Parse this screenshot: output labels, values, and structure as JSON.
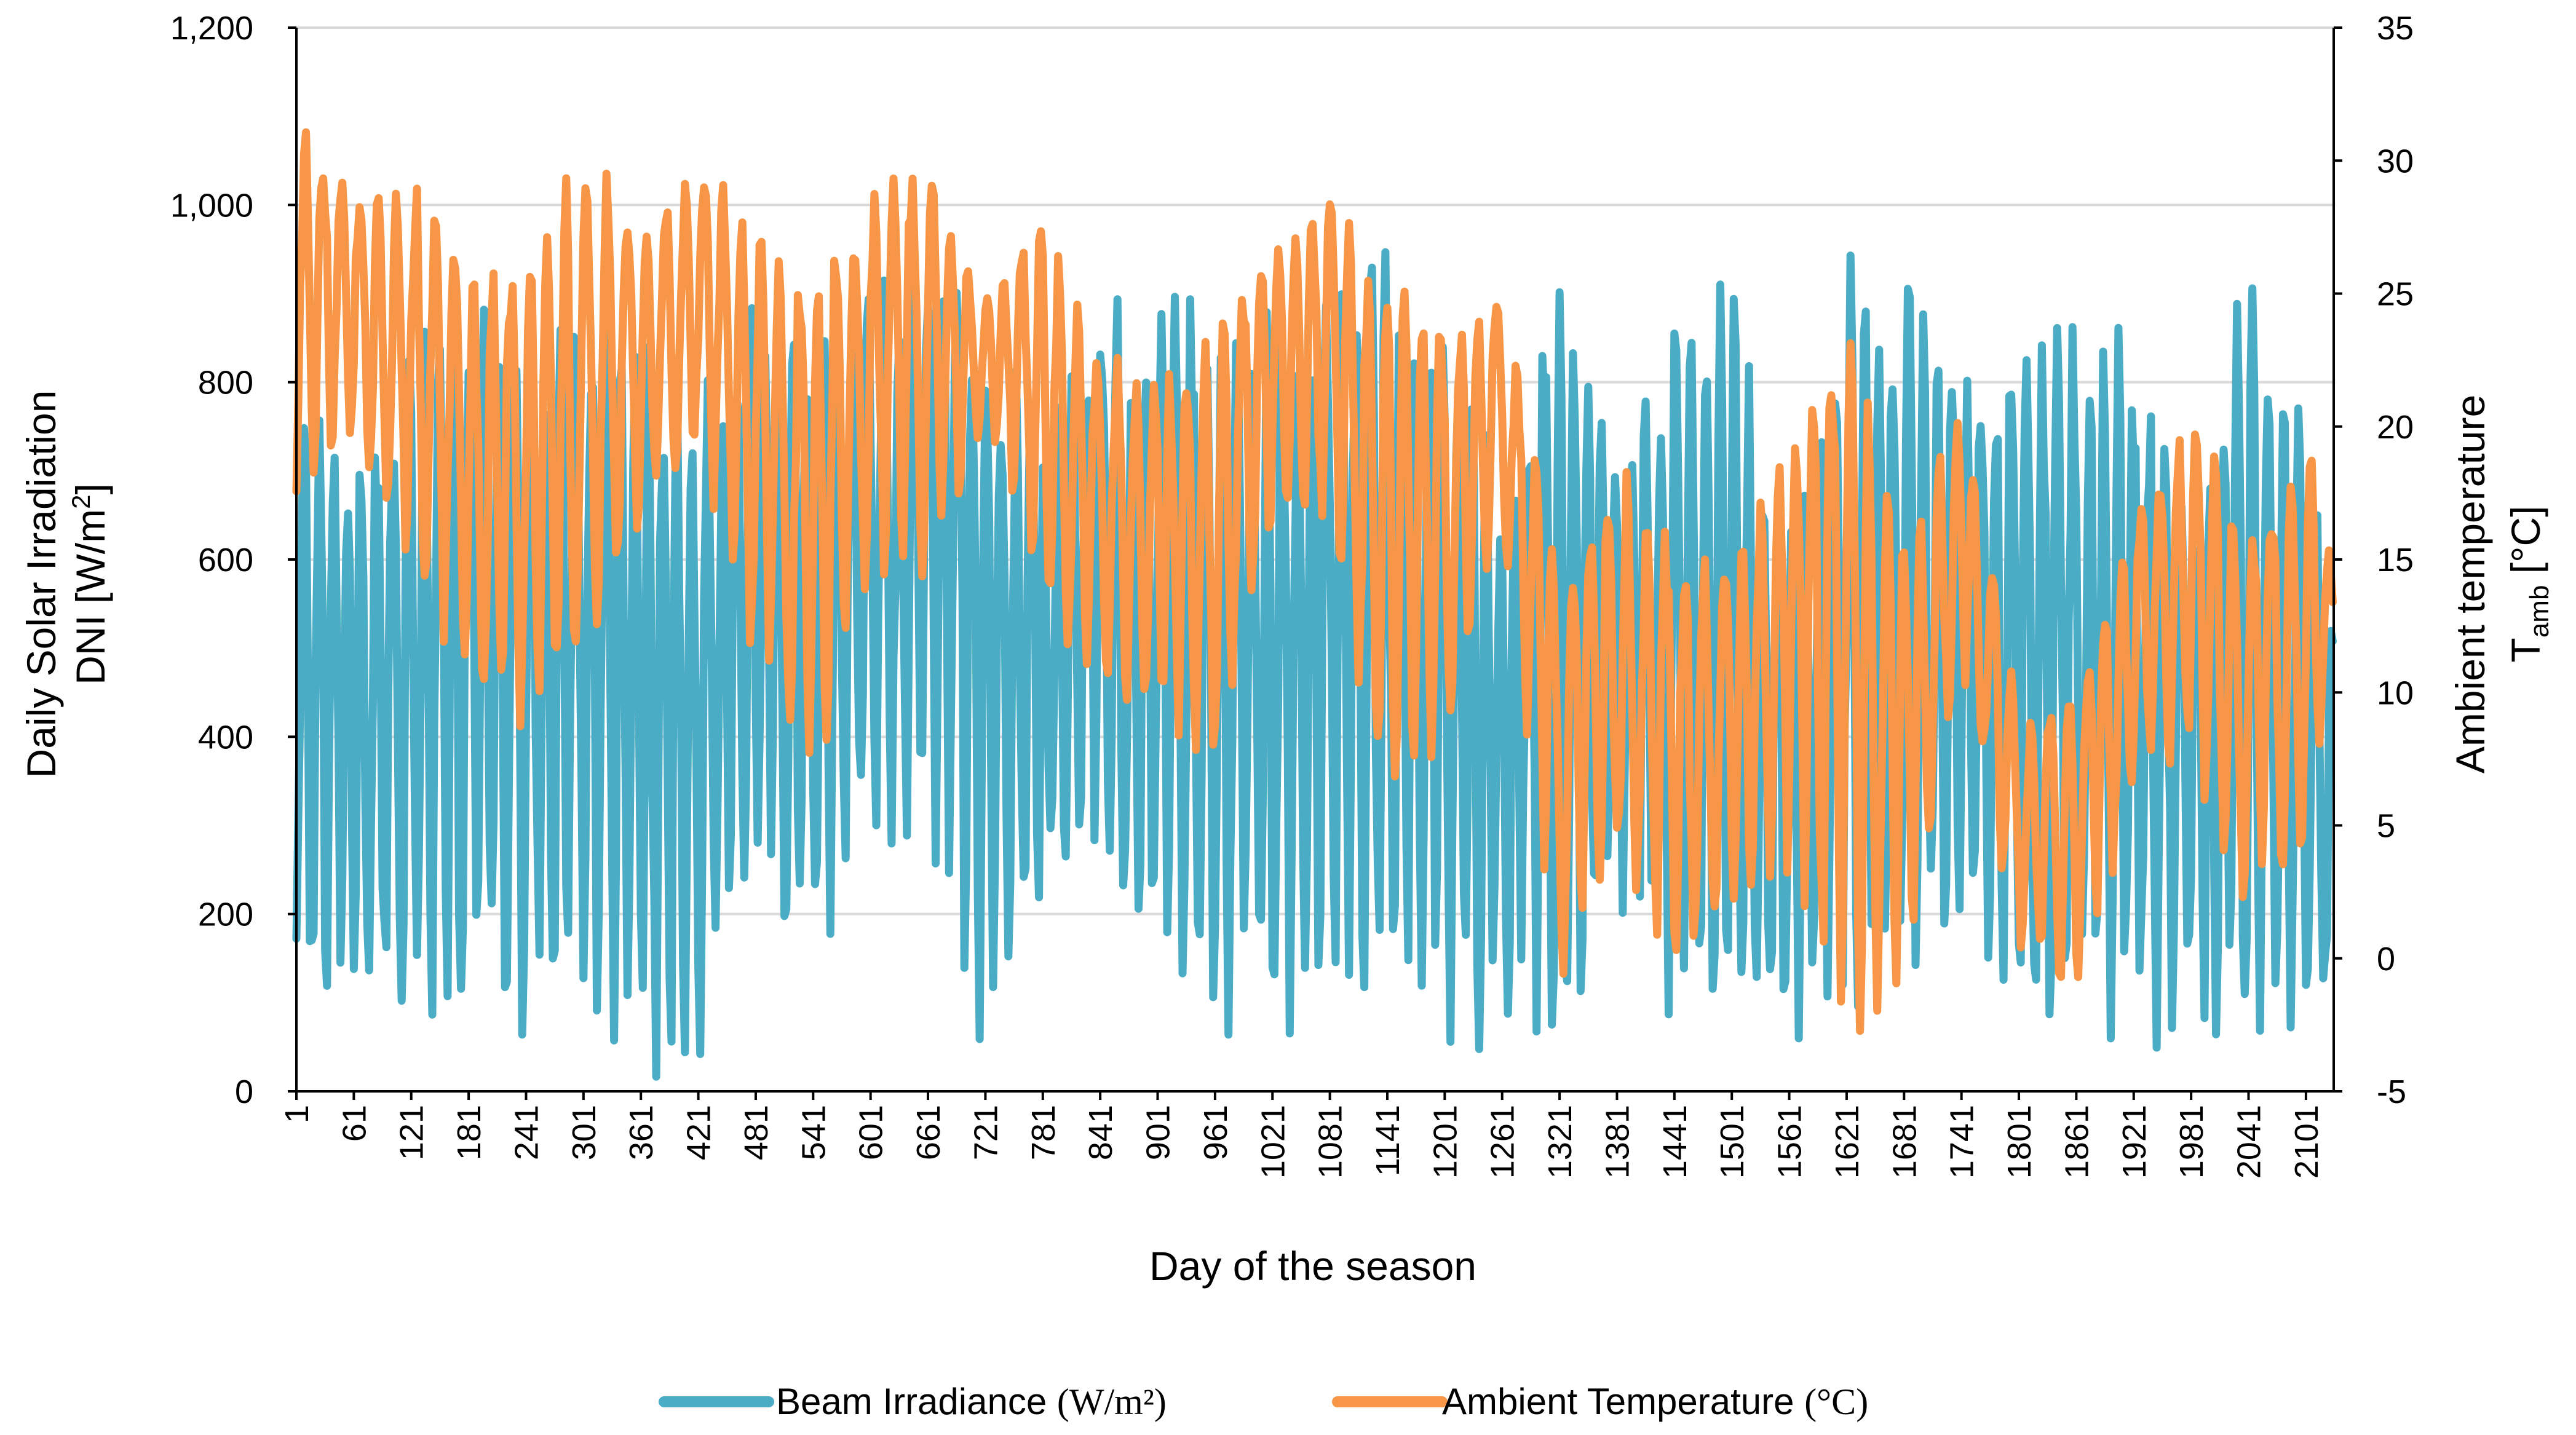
{
  "chart_data": {
    "type": "line",
    "title": "",
    "xlabel": "Day of the season",
    "ylabel_left": [
      "Daily Solar Irradiation",
      "DNI [W/m",
      "2",
      "]"
    ],
    "ylabel_right": [
      "Ambient temperature",
      "T",
      "amb",
      " [°C]"
    ],
    "ylim_left": [
      0,
      1200
    ],
    "ylim_right": [
      -5,
      35
    ],
    "xlim": [
      1,
      2130
    ],
    "y_ticks_left": [
      0,
      200,
      400,
      600,
      800,
      1000,
      1200
    ],
    "y_tick_labels_left": [
      "0",
      "200",
      "400",
      "600",
      "800",
      "1,000",
      "1,200"
    ],
    "y_ticks_right": [
      -5,
      0,
      5,
      10,
      15,
      20,
      25,
      30,
      35
    ],
    "y_tick_labels_right": [
      "-5",
      "0",
      "5",
      "10",
      "15",
      "20",
      "25",
      "30",
      "35"
    ],
    "x_ticks": [
      1,
      61,
      121,
      181,
      241,
      301,
      361,
      421,
      481,
      541,
      601,
      661,
      721,
      781,
      841,
      901,
      961,
      1021,
      1081,
      1141,
      1201,
      1261,
      1321,
      1381,
      1441,
      1501,
      1561,
      1621,
      1681,
      1741,
      1801,
      1861,
      1921,
      1981,
      2041,
      2101
    ],
    "grid": true,
    "legend_position": "bottom",
    "series": [
      {
        "name": "Beam Irradiance",
        "unit": "(W/m²)",
        "axis": "left",
        "color": "#4BACC6",
        "envelope_x": [
          1,
          61,
          121,
          181,
          241,
          301,
          361,
          421,
          481,
          541,
          601,
          661,
          721,
          781,
          841,
          901,
          961,
          1021,
          1081,
          1141,
          1201,
          1261,
          1321,
          1381,
          1441,
          1501,
          1561,
          1621,
          1681,
          1741,
          1801,
          1861,
          1921,
          1981,
          2041,
          2101,
          2130
        ],
        "high_values": [
          800,
          720,
          900,
          940,
          900,
          950,
          880,
          780,
          950,
          900,
          920,
          950,
          900,
          780,
          900,
          920,
          930,
          900,
          920,
          980,
          900,
          720,
          960,
          700,
          920,
          920,
          640,
          950,
          940,
          830,
          900,
          900,
          850,
          700,
          940,
          780,
          550
        ],
        "low_values": [
          60,
          40,
          40,
          60,
          40,
          50,
          0,
          0,
          150,
          100,
          260,
          260,
          30,
          180,
          250,
          40,
          40,
          30,
          60,
          60,
          20,
          30,
          20,
          200,
          50,
          40,
          20,
          60,
          80,
          150,
          20,
          20,
          60,
          20,
          40,
          20,
          20
        ]
      },
      {
        "name": "Ambient Temperature",
        "unit": "(°C)",
        "axis": "right",
        "color": "#F79646",
        "envelope_x": [
          1,
          61,
          121,
          181,
          241,
          301,
          361,
          421,
          481,
          541,
          601,
          661,
          721,
          781,
          841,
          901,
          961,
          1021,
          1081,
          1141,
          1201,
          1261,
          1321,
          1381,
          1441,
          1501,
          1561,
          1621,
          1681,
          1741,
          1801,
          1861,
          1921,
          1981,
          2041,
          2101,
          2130
        ],
        "high_values": [
          32,
          29,
          30,
          26,
          26,
          31,
          28,
          30,
          28,
          26,
          29,
          30,
          25,
          28,
          23,
          22,
          24,
          27,
          29,
          26,
          24,
          25,
          15,
          19,
          16,
          15,
          20,
          25,
          16,
          21,
          10,
          10,
          17,
          21,
          16,
          20,
          15
        ],
        "low_values": [
          17,
          19,
          14,
          10,
          8,
          10,
          16,
          19,
          10,
          6,
          14,
          14,
          20,
          13,
          10,
          8,
          7,
          16,
          16,
          4,
          7,
          16,
          -2,
          3,
          -1,
          1,
          3,
          -3,
          -2,
          11,
          0,
          -2,
          6,
          7,
          1,
          4,
          10
        ]
      }
    ]
  },
  "legend": {
    "beam_label": "Beam Irradiance ",
    "beam_unit": "(W/m²)",
    "temp_label": "Ambient Temperature ",
    "temp_unit": "(°C)"
  }
}
